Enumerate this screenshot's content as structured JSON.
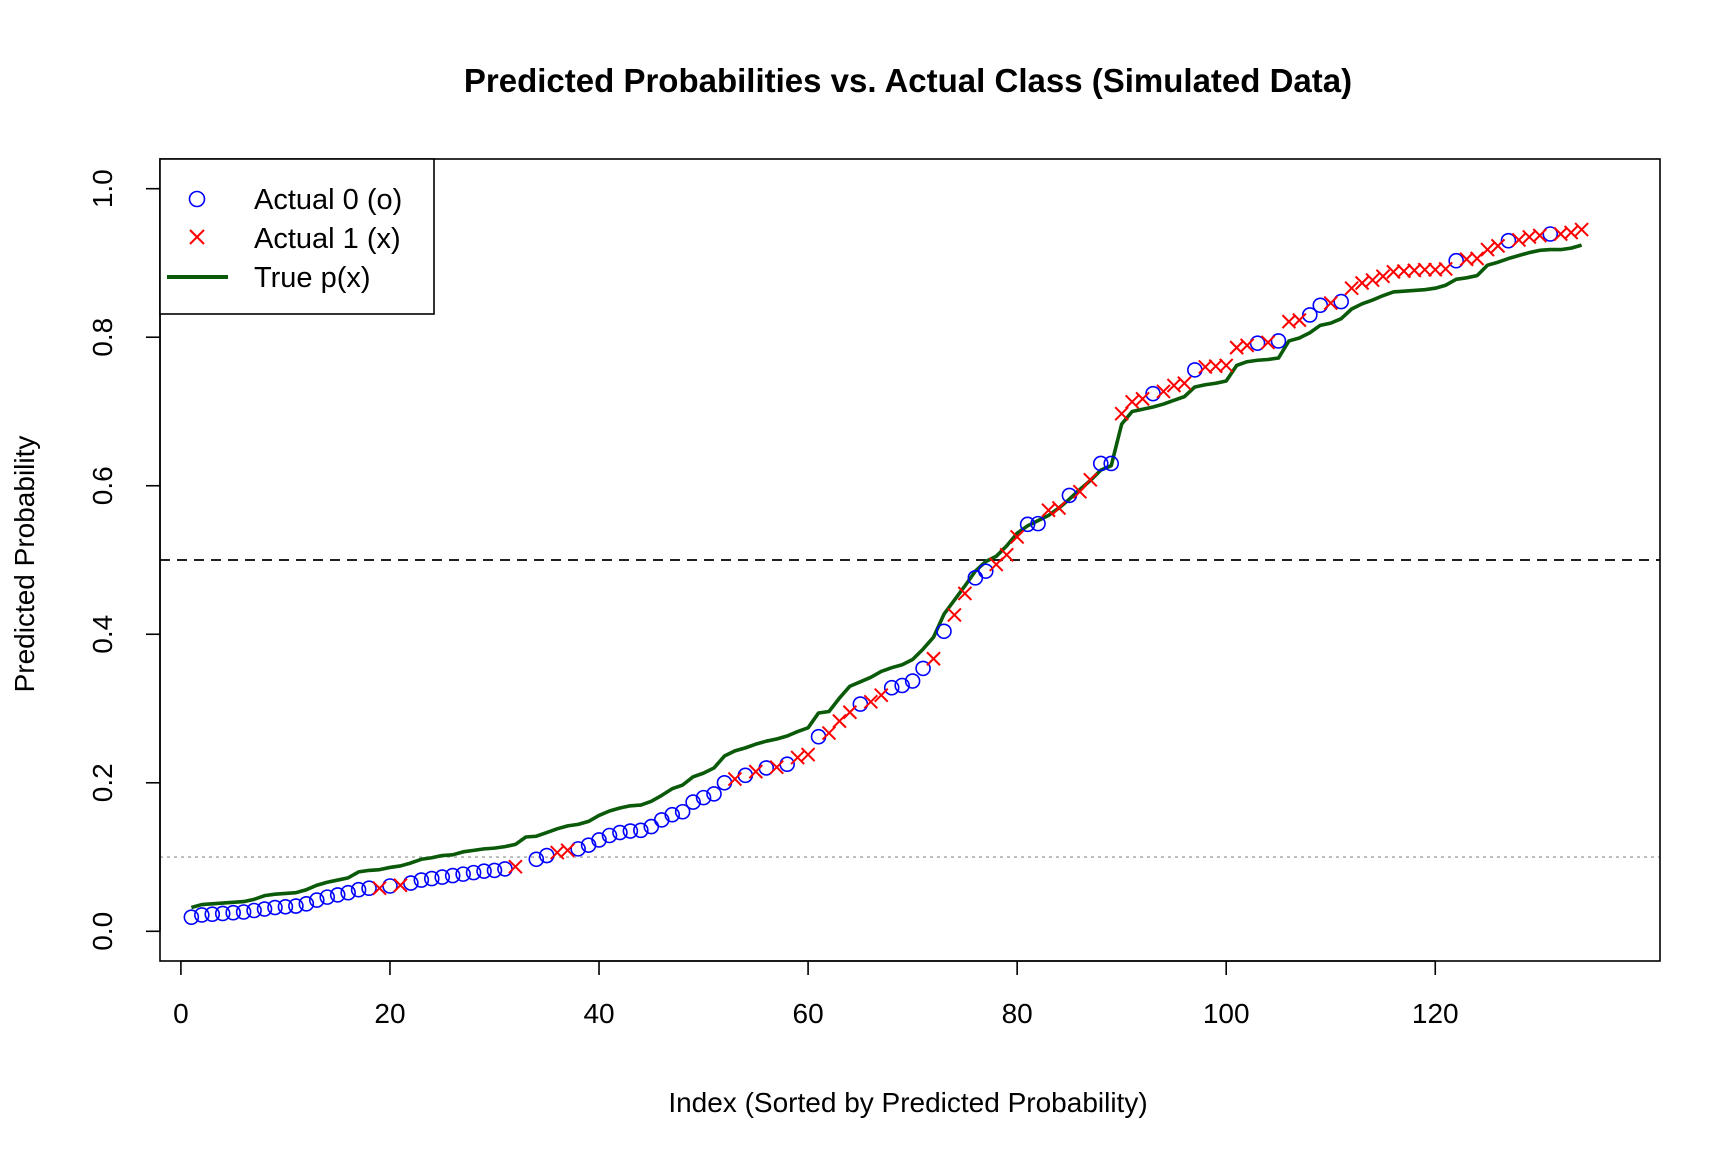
{
  "chart_data": {
    "type": "scatter",
    "title": "Predicted Probabilities vs. Actual Class (Simulated Data)",
    "xlabel": "Index (Sorted by Predicted Probability)",
    "ylabel": "Predicted Probability",
    "xlim": [
      -2,
      141.5
    ],
    "ylim": [
      -0.04,
      1.04
    ],
    "x_ticks": [
      0,
      20,
      40,
      60,
      80,
      100,
      120
    ],
    "x_tick_labels": [
      "0",
      "20",
      "40",
      "60",
      "80",
      "100",
      "120"
    ],
    "y_ticks": [
      0.0,
      0.2,
      0.4,
      0.6,
      0.8,
      1.0
    ],
    "y_tick_labels": [
      "0.0",
      "0.2",
      "0.4",
      "0.6",
      "0.8",
      "1.0"
    ],
    "grid": false,
    "legend": {
      "position": "top-left",
      "entries": [
        {
          "label": "Actual 0 (o)",
          "marker": "circle",
          "color": "#0000ff"
        },
        {
          "label": "Actual 1 (x)",
          "marker": "cross",
          "color": "#ff0000"
        },
        {
          "label": "True p(x)",
          "marker": "line",
          "color": "#0a5a0a"
        }
      ]
    },
    "reference_lines": [
      {
        "y": 0.5,
        "style": "dashed",
        "color": "#000000"
      },
      {
        "y": 0.1,
        "style": "dotted",
        "color": "#b0b0b0"
      }
    ],
    "series": [
      {
        "name": "Actual 0 (o)",
        "marker": "circle",
        "color": "#0000ff",
        "points": [
          [
            1,
            0.019
          ],
          [
            2,
            0.022
          ],
          [
            3,
            0.023
          ],
          [
            4,
            0.024
          ],
          [
            5,
            0.025
          ],
          [
            6,
            0.026
          ],
          [
            7,
            0.028
          ],
          [
            8,
            0.03
          ],
          [
            9,
            0.032
          ],
          [
            10,
            0.033
          ],
          [
            11,
            0.034
          ],
          [
            12,
            0.037
          ],
          [
            13,
            0.042
          ],
          [
            14,
            0.046
          ],
          [
            15,
            0.049
          ],
          [
            16,
            0.052
          ],
          [
            17,
            0.056
          ],
          [
            18,
            0.058
          ],
          [
            20,
            0.061
          ],
          [
            22,
            0.065
          ],
          [
            23,
            0.069
          ],
          [
            24,
            0.071
          ],
          [
            25,
            0.073
          ],
          [
            26,
            0.075
          ],
          [
            27,
            0.077
          ],
          [
            28,
            0.079
          ],
          [
            29,
            0.081
          ],
          [
            30,
            0.082
          ],
          [
            31,
            0.084
          ],
          [
            34,
            0.097
          ],
          [
            35,
            0.102
          ],
          [
            38,
            0.111
          ],
          [
            39,
            0.116
          ],
          [
            40,
            0.123
          ],
          [
            41,
            0.129
          ],
          [
            42,
            0.133
          ],
          [
            43,
            0.135
          ],
          [
            44,
            0.136
          ],
          [
            45,
            0.141
          ],
          [
            46,
            0.15
          ],
          [
            47,
            0.157
          ],
          [
            48,
            0.161
          ],
          [
            49,
            0.174
          ],
          [
            50,
            0.18
          ],
          [
            51,
            0.185
          ],
          [
            52,
            0.2
          ],
          [
            54,
            0.21
          ],
          [
            56,
            0.22
          ],
          [
            58,
            0.225
          ],
          [
            61,
            0.262
          ],
          [
            65,
            0.306
          ],
          [
            68,
            0.328
          ],
          [
            69,
            0.331
          ],
          [
            70,
            0.337
          ],
          [
            71,
            0.354
          ],
          [
            73,
            0.404
          ],
          [
            76,
            0.476
          ],
          [
            77,
            0.485
          ],
          [
            81,
            0.548
          ],
          [
            82,
            0.549
          ],
          [
            85,
            0.587
          ],
          [
            88,
            0.63
          ],
          [
            89,
            0.63
          ],
          [
            93,
            0.724
          ],
          [
            97,
            0.756
          ],
          [
            103,
            0.792
          ],
          [
            105,
            0.795
          ],
          [
            108,
            0.83
          ],
          [
            109,
            0.843
          ],
          [
            111,
            0.848
          ],
          [
            122,
            0.903
          ],
          [
            127,
            0.93
          ],
          [
            131,
            0.939
          ]
        ]
      },
      {
        "name": "Actual 1 (x)",
        "marker": "cross",
        "color": "#ff0000",
        "points": [
          [
            19,
            0.058
          ],
          [
            21,
            0.062
          ],
          [
            32,
            0.087
          ],
          [
            36,
            0.106
          ],
          [
            37,
            0.109
          ],
          [
            53,
            0.205
          ],
          [
            55,
            0.215
          ],
          [
            57,
            0.221
          ],
          [
            59,
            0.234
          ],
          [
            60,
            0.238
          ],
          [
            62,
            0.267
          ],
          [
            63,
            0.283
          ],
          [
            64,
            0.295
          ],
          [
            66,
            0.309
          ],
          [
            67,
            0.318
          ],
          [
            72,
            0.367
          ],
          [
            74,
            0.426
          ],
          [
            75,
            0.455
          ],
          [
            78,
            0.494
          ],
          [
            79,
            0.507
          ],
          [
            80,
            0.531
          ],
          [
            83,
            0.567
          ],
          [
            84,
            0.57
          ],
          [
            86,
            0.592
          ],
          [
            87,
            0.608
          ],
          [
            90,
            0.697
          ],
          [
            91,
            0.713
          ],
          [
            92,
            0.717
          ],
          [
            94,
            0.727
          ],
          [
            95,
            0.735
          ],
          [
            96,
            0.738
          ],
          [
            98,
            0.76
          ],
          [
            99,
            0.761
          ],
          [
            100,
            0.762
          ],
          [
            101,
            0.786
          ],
          [
            102,
            0.789
          ],
          [
            104,
            0.793
          ],
          [
            106,
            0.821
          ],
          [
            107,
            0.823
          ],
          [
            110,
            0.846
          ],
          [
            112,
            0.866
          ],
          [
            113,
            0.873
          ],
          [
            114,
            0.877
          ],
          [
            115,
            0.882
          ],
          [
            116,
            0.888
          ],
          [
            117,
            0.889
          ],
          [
            118,
            0.89
          ],
          [
            119,
            0.891
          ],
          [
            120,
            0.891
          ],
          [
            121,
            0.892
          ],
          [
            123,
            0.905
          ],
          [
            124,
            0.906
          ],
          [
            125,
            0.918
          ],
          [
            126,
            0.923
          ],
          [
            128,
            0.931
          ],
          [
            129,
            0.935
          ],
          [
            130,
            0.937
          ],
          [
            132,
            0.939
          ],
          [
            133,
            0.941
          ],
          [
            134,
            0.945
          ]
        ]
      },
      {
        "name": "True p(x)",
        "marker": "line",
        "color": "#0a5a0a",
        "points": [
          [
            1,
            0.032
          ],
          [
            2,
            0.036
          ],
          [
            3,
            0.037
          ],
          [
            4,
            0.038
          ],
          [
            5,
            0.039
          ],
          [
            6,
            0.04
          ],
          [
            7,
            0.043
          ],
          [
            8,
            0.048
          ],
          [
            9,
            0.05
          ],
          [
            10,
            0.051
          ],
          [
            11,
            0.052
          ],
          [
            12,
            0.056
          ],
          [
            13,
            0.062
          ],
          [
            14,
            0.066
          ],
          [
            15,
            0.069
          ],
          [
            16,
            0.072
          ],
          [
            17,
            0.08
          ],
          [
            18,
            0.082
          ],
          [
            19,
            0.083
          ],
          [
            20,
            0.086
          ],
          [
            21,
            0.088
          ],
          [
            22,
            0.092
          ],
          [
            23,
            0.097
          ],
          [
            24,
            0.099
          ],
          [
            25,
            0.102
          ],
          [
            26,
            0.103
          ],
          [
            27,
            0.107
          ],
          [
            28,
            0.109
          ],
          [
            29,
            0.111
          ],
          [
            30,
            0.112
          ],
          [
            31,
            0.114
          ],
          [
            32,
            0.117
          ],
          [
            33,
            0.127
          ],
          [
            34,
            0.128
          ],
          [
            35,
            0.133
          ],
          [
            36,
            0.138
          ],
          [
            37,
            0.142
          ],
          [
            38,
            0.144
          ],
          [
            39,
            0.148
          ],
          [
            40,
            0.156
          ],
          [
            41,
            0.162
          ],
          [
            42,
            0.166
          ],
          [
            43,
            0.169
          ],
          [
            44,
            0.17
          ],
          [
            45,
            0.175
          ],
          [
            46,
            0.183
          ],
          [
            47,
            0.192
          ],
          [
            48,
            0.197
          ],
          [
            49,
            0.208
          ],
          [
            50,
            0.213
          ],
          [
            51,
            0.22
          ],
          [
            52,
            0.236
          ],
          [
            53,
            0.243
          ],
          [
            54,
            0.247
          ],
          [
            55,
            0.252
          ],
          [
            56,
            0.256
          ],
          [
            57,
            0.259
          ],
          [
            58,
            0.263
          ],
          [
            59,
            0.269
          ],
          [
            60,
            0.274
          ],
          [
            61,
            0.294
          ],
          [
            62,
            0.296
          ],
          [
            63,
            0.314
          ],
          [
            64,
            0.33
          ],
          [
            65,
            0.336
          ],
          [
            66,
            0.342
          ],
          [
            67,
            0.35
          ],
          [
            68,
            0.355
          ],
          [
            69,
            0.359
          ],
          [
            70,
            0.366
          ],
          [
            71,
            0.38
          ],
          [
            72,
            0.396
          ],
          [
            73,
            0.427
          ],
          [
            74,
            0.446
          ],
          [
            75,
            0.465
          ],
          [
            76,
            0.485
          ],
          [
            77,
            0.498
          ],
          [
            78,
            0.505
          ],
          [
            79,
            0.519
          ],
          [
            80,
            0.536
          ],
          [
            81,
            0.546
          ],
          [
            82,
            0.553
          ],
          [
            83,
            0.56
          ],
          [
            84,
            0.57
          ],
          [
            85,
            0.582
          ],
          [
            86,
            0.595
          ],
          [
            87,
            0.607
          ],
          [
            88,
            0.621
          ],
          [
            89,
            0.627
          ],
          [
            90,
            0.683
          ],
          [
            91,
            0.7
          ],
          [
            92,
            0.703
          ],
          [
            93,
            0.706
          ],
          [
            94,
            0.71
          ],
          [
            95,
            0.715
          ],
          [
            96,
            0.72
          ],
          [
            97,
            0.733
          ],
          [
            98,
            0.736
          ],
          [
            99,
            0.738
          ],
          [
            100,
            0.741
          ],
          [
            101,
            0.762
          ],
          [
            102,
            0.767
          ],
          [
            103,
            0.769
          ],
          [
            104,
            0.77
          ],
          [
            105,
            0.772
          ],
          [
            106,
            0.795
          ],
          [
            107,
            0.799
          ],
          [
            108,
            0.806
          ],
          [
            109,
            0.816
          ],
          [
            110,
            0.819
          ],
          [
            111,
            0.825
          ],
          [
            112,
            0.838
          ],
          [
            113,
            0.845
          ],
          [
            114,
            0.85
          ],
          [
            115,
            0.856
          ],
          [
            116,
            0.861
          ],
          [
            117,
            0.862
          ],
          [
            118,
            0.863
          ],
          [
            119,
            0.864
          ],
          [
            120,
            0.866
          ],
          [
            121,
            0.87
          ],
          [
            122,
            0.878
          ],
          [
            123,
            0.88
          ],
          [
            124,
            0.883
          ],
          [
            125,
            0.897
          ],
          [
            126,
            0.901
          ],
          [
            127,
            0.906
          ],
          [
            128,
            0.91
          ],
          [
            129,
            0.914
          ],
          [
            130,
            0.917
          ],
          [
            131,
            0.918
          ],
          [
            132,
            0.918
          ],
          [
            133,
            0.92
          ],
          [
            134,
            0.924
          ]
        ]
      }
    ]
  }
}
